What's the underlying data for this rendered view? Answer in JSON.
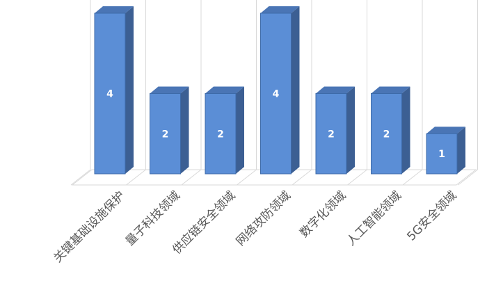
{
  "chart_data": {
    "type": "bar",
    "style": "3d-column",
    "categories": [
      "关键基础设施保护",
      "量子科技领域",
      "供应链安全领域",
      "网络攻防领域",
      "数字化领域",
      "人工智能领域",
      "5G安全领域"
    ],
    "values": [
      4,
      2,
      2,
      4,
      2,
      2,
      1
    ],
    "data_labels": [
      "4",
      "2",
      "2",
      "4",
      "2",
      "2",
      "1"
    ],
    "title": "",
    "xlabel": "",
    "ylabel": "",
    "ylim": [
      0,
      4.5
    ],
    "grid": "vertical-category-lines",
    "legend": "none",
    "colors": {
      "bar_front": "#5b8ed6",
      "bar_top": "#4a75b5",
      "bar_side": "#3c5f93",
      "bar_edge": "#3d6aa8",
      "grid": "#d9d9d9",
      "label": "#595959",
      "data_label": "#ffffff"
    }
  }
}
